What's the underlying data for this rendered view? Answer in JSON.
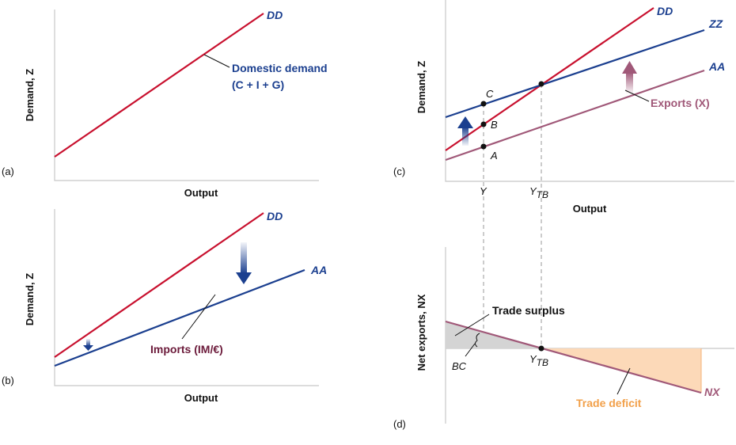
{
  "panels": {
    "a": {
      "tag": "(a)",
      "ylabel": "Demand, Z",
      "xlabel": "Output",
      "dd_label": "DD",
      "annotation_line1": "Domestic demand",
      "annotation_line2": "(C + I + G)"
    },
    "b": {
      "tag": "(b)",
      "ylabel": "Demand, Z",
      "xlabel": "Output",
      "dd_label": "DD",
      "aa_label": "AA",
      "annotation": "Imports (IM/€)"
    },
    "c": {
      "tag": "(c)",
      "ylabel": "Demand, Z",
      "xlabel": "Output",
      "dd_label": "DD",
      "zz_label": "ZZ",
      "aa_label": "AA",
      "exports_annotation": "Exports (X)",
      "point_a": "A",
      "point_b": "B",
      "point_c": "C",
      "tick_y": "Y",
      "tick_ytb_main": "Y",
      "tick_ytb_sub": "TB"
    },
    "d": {
      "tag": "(d)",
      "ylabel": "Net exports, NX",
      "nx_label": "NX",
      "surplus_label": "Trade surplus",
      "deficit_label": "Trade deficit",
      "bc_label": "BC",
      "tick_ytb_main": "Y",
      "tick_ytb_sub": "TB"
    }
  },
  "colors": {
    "domestic_demand_dd": "#c8102e",
    "aa_and_zz": "#1b3f8f",
    "exports_and_nx": "#a05878",
    "surplus_fill": "#d4d4d4",
    "deficit_fill": "#fcd9b8"
  }
}
